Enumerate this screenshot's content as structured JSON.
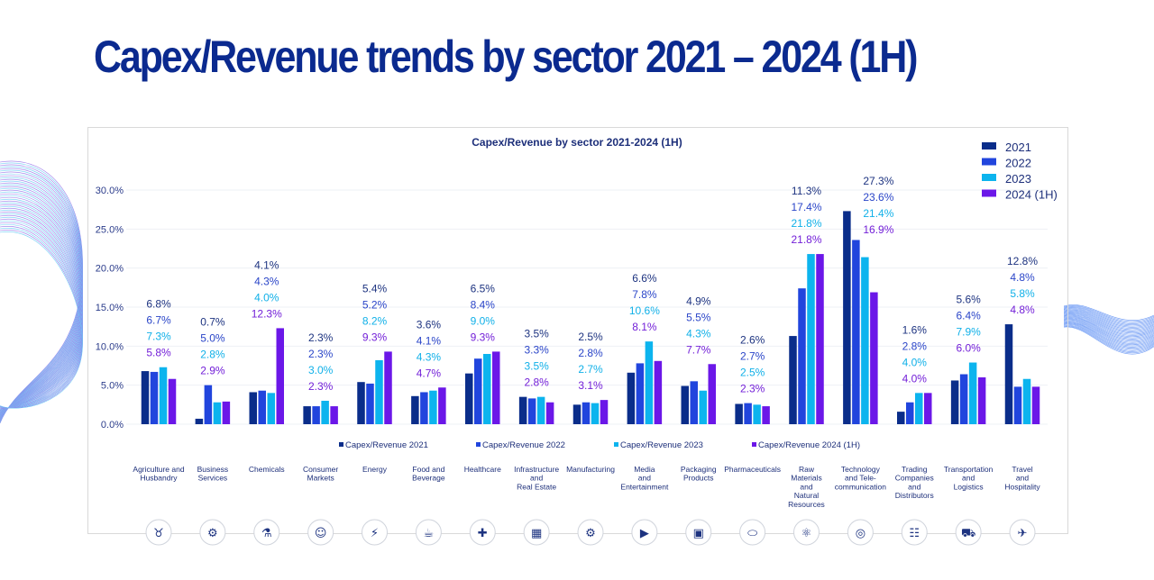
{
  "page_title": "Capex/Revenue trends by sector 2021 – 2024 (1H)",
  "chart_data": {
    "type": "bar",
    "title": "Capex/Revenue by sector 2021-2024 (1H)",
    "xlabel": "",
    "ylabel": "",
    "ylim": [
      0,
      30
    ],
    "yticks": [
      "0.0%",
      "5.0%",
      "10.0%",
      "15.0%",
      "20.0%",
      "25.0%",
      "30.0%"
    ],
    "grid": true,
    "legend_position": "top-right",
    "legend": [
      "2021",
      "2022",
      "2023",
      "2024 (1H)"
    ],
    "bottom_legend": [
      "Capex/Revenue 2021",
      "Capex/Revenue 2022",
      "Capex/Revenue 2023",
      "Capex/Revenue 2024 (1H)"
    ],
    "categories": [
      "Agriculture and\nHusbandry",
      "Business\nServices",
      "Chemicals",
      "Consumer\nMarkets",
      "Energy",
      "Food and\nBeverage",
      "Healthcare",
      "Infrastructure\nand\nReal Estate",
      "Manufacturing",
      "Media\nand\nEntertainment",
      "Packaging\nProducts",
      "Pharmaceuticals",
      "Raw\nMaterials\nand\nNatural\nResources",
      "Technology\nand Tele-\ncommunication",
      "Trading\nCompanies\nand\nDistributors",
      "Transportation\nand\nLogistics",
      "Travel\nand\nHospitality"
    ],
    "category_icons": [
      "bull-icon",
      "handshake-gear-icon",
      "flask-icon",
      "shopper-icon",
      "energy-icon",
      "food-icon",
      "health-hand-icon",
      "building-icon",
      "gear-icon",
      "camera-icon",
      "box-icon",
      "pills-icon",
      "atom-icon",
      "satellite-icon",
      "people-icon",
      "truck-icon",
      "plane-icon"
    ],
    "series": [
      {
        "name": "2021",
        "color": "#0a2d8a",
        "values": [
          6.8,
          0.7,
          4.1,
          2.3,
          5.4,
          3.6,
          6.5,
          3.5,
          2.5,
          6.6,
          4.9,
          2.6,
          11.3,
          27.3,
          1.6,
          5.6,
          12.8
        ]
      },
      {
        "name": "2022",
        "color": "#2145dd",
        "values": [
          6.7,
          5.0,
          4.3,
          2.3,
          5.2,
          4.1,
          8.4,
          3.3,
          2.8,
          7.8,
          5.5,
          2.7,
          17.4,
          23.6,
          2.8,
          6.4,
          4.8
        ]
      },
      {
        "name": "2023",
        "color": "#0cb4ee",
        "values": [
          7.3,
          2.8,
          4.0,
          3.0,
          8.2,
          4.3,
          9.0,
          3.5,
          2.7,
          10.6,
          4.3,
          2.5,
          21.8,
          21.4,
          4.0,
          7.9,
          5.8
        ]
      },
      {
        "name": "2024 (1H)",
        "color": "#6b17e8",
        "values": [
          5.8,
          2.9,
          12.3,
          2.3,
          9.3,
          4.7,
          9.3,
          2.8,
          3.1,
          8.1,
          7.7,
          2.3,
          21.8,
          16.9,
          4.0,
          6.0,
          4.8
        ]
      }
    ],
    "label_colors": [
      "#1d3380",
      "#2a45c8",
      "#10b0e8",
      "#7320d8"
    ]
  }
}
